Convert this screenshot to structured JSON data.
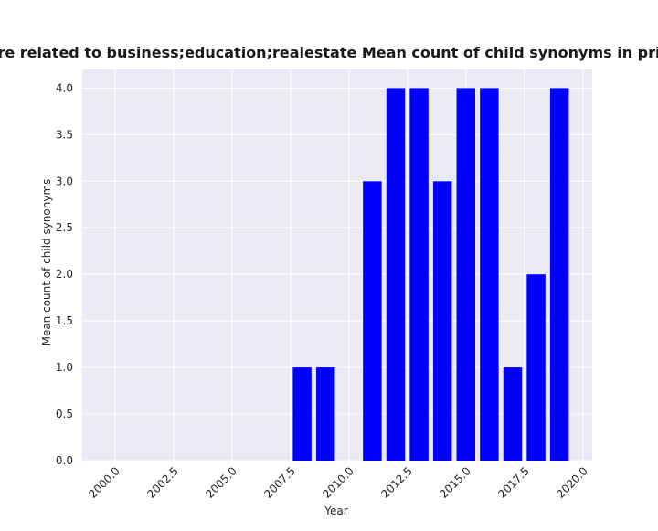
{
  "chart_data": {
    "type": "bar",
    "title": "...ories are related to business;education;realestate Mean count of child synonyms in privacy po...",
    "xlabel": "Year",
    "ylabel": "Mean count of child synonyms",
    "x": [
      2008,
      2009,
      2011,
      2012,
      2013,
      2014,
      2015,
      2016,
      2017,
      2018,
      2019
    ],
    "values": [
      1.0,
      1.0,
      3.0,
      4.0,
      4.0,
      3.0,
      4.0,
      4.0,
      1.0,
      2.0,
      4.0
    ],
    "xlim": [
      1998.6,
      2020.4
    ],
    "ylim": [
      0,
      4.2
    ],
    "xticks": [
      2000.0,
      2002.5,
      2005.0,
      2007.5,
      2010.0,
      2012.5,
      2015.0,
      2017.5,
      2020.0
    ],
    "xtick_labels": [
      "2000.0",
      "2002.5",
      "2005.0",
      "2007.5",
      "2010.0",
      "2012.5",
      "2015.0",
      "2017.5",
      "2020.0"
    ],
    "yticks": [
      0.0,
      0.5,
      1.0,
      1.5,
      2.0,
      2.5,
      3.0,
      3.5,
      4.0
    ],
    "ytick_labels": [
      "0.0",
      "0.5",
      "1.0",
      "1.5",
      "2.0",
      "2.5",
      "3.0",
      "3.5",
      "4.0"
    ],
    "grid": true,
    "bar_color": "#0000ff",
    "plot_background": "#eaeaf2",
    "grid_color": "#ffffff"
  }
}
